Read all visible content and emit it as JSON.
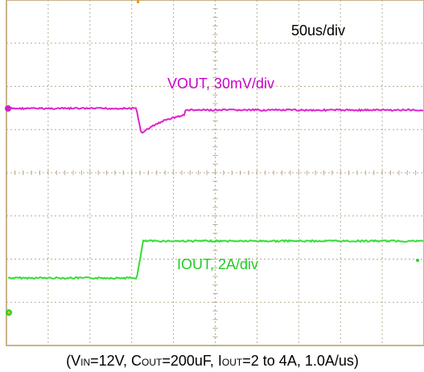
{
  "timebase": "50us/div",
  "traces": [
    {
      "label": "VOUT, 30mV/div"
    },
    {
      "label": "IOUT, 2A/div"
    }
  ],
  "caption": {
    "parts": [
      "(V",
      "IN",
      "=12V, C",
      "OUT",
      "=200uF, I",
      "OUT",
      "=2 to 4A, 1.0A/us)"
    ]
  }
}
